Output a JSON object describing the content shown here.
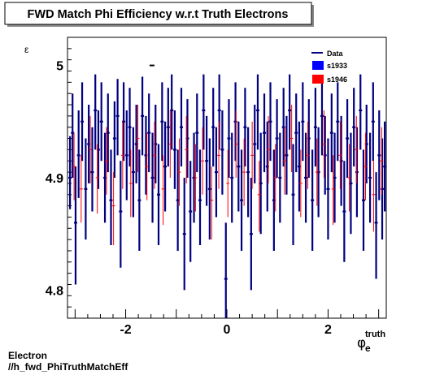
{
  "chart_data": {
    "type": "scatter",
    "title": "FWD Match Phi Efficiency w.r.t Truth Electrons",
    "ylabel": "ε",
    "xlabel_main": "φ",
    "xlabel_sub": "e",
    "xlabel_sup": "truth",
    "xlim": [
      -3.15,
      3.15
    ],
    "ylim": [
      4.775,
      5.025
    ],
    "xticks": [
      {
        "value": -2,
        "label": "-2"
      },
      {
        "value": 0,
        "label": "0"
      },
      {
        "value": 2,
        "label": "2"
      }
    ],
    "yticks": [
      {
        "value": 4.8,
        "label": "4.8"
      },
      {
        "value": 4.9,
        "label": "4.9"
      },
      {
        "value": 5.0,
        "label": "5"
      }
    ],
    "grid": false,
    "legend_position": "top-right",
    "legend": [
      {
        "label": "Data",
        "symbol": "line",
        "color": "#000080"
      },
      {
        "label": "s1933",
        "symbol": "box",
        "color": "#0000ff"
      },
      {
        "label": "s1946",
        "symbol": "box",
        "color": "#ff0000"
      }
    ],
    "series": [
      {
        "color": "#000080",
        "line_width": 2.2,
        "points": [
          [
            -3.1,
            4.9,
            4.872,
            4.937
          ],
          [
            -3.05,
            4.94,
            4.9,
            4.975
          ],
          [
            -2.99,
            4.86,
            4.805,
            4.91
          ],
          [
            -2.93,
            4.92,
            4.882,
            4.96
          ],
          [
            -2.86,
            4.95,
            4.915,
            4.985
          ],
          [
            -2.79,
            4.89,
            4.845,
            4.935
          ],
          [
            -2.73,
            4.93,
            4.895,
            4.965
          ],
          [
            -2.66,
            4.905,
            4.87,
            4.945
          ],
          [
            -2.6,
            4.96,
            4.925,
            4.992
          ],
          [
            -2.54,
            4.925,
            4.89,
            4.96
          ],
          [
            -2.48,
            4.95,
            4.915,
            4.985
          ],
          [
            -2.41,
            4.9,
            4.86,
            4.94
          ],
          [
            -2.35,
            4.94,
            4.905,
            4.975
          ],
          [
            -2.29,
            4.88,
            4.84,
            4.925
          ],
          [
            -2.22,
            4.935,
            4.9,
            4.968
          ],
          [
            -2.16,
            4.955,
            4.92,
            4.988
          ],
          [
            -2.1,
            4.87,
            4.82,
            4.915
          ],
          [
            -2.04,
            4.95,
            4.915,
            4.985
          ],
          [
            -1.98,
            4.92,
            4.88,
            4.96
          ],
          [
            -1.92,
            4.945,
            4.91,
            4.98
          ],
          [
            -1.85,
            4.905,
            4.865,
            4.945
          ],
          [
            -1.79,
            4.93,
            4.895,
            4.965
          ],
          [
            -1.73,
            4.88,
            4.835,
            4.925
          ],
          [
            -1.67,
            4.955,
            4.92,
            4.99
          ],
          [
            -1.6,
            4.92,
            4.885,
            4.955
          ],
          [
            -1.54,
            4.94,
            4.905,
            4.975
          ],
          [
            -1.47,
            4.9,
            4.86,
            4.94
          ],
          [
            -1.41,
            4.93,
            4.895,
            4.965
          ],
          [
            -1.35,
            4.885,
            4.84,
            4.93
          ],
          [
            -1.28,
            4.95,
            4.915,
            4.985
          ],
          [
            -1.22,
            4.91,
            4.87,
            4.95
          ],
          [
            -1.16,
            4.945,
            4.91,
            4.98
          ],
          [
            -1.09,
            4.96,
            4.925,
            4.992
          ],
          [
            -1.03,
            4.925,
            4.89,
            4.96
          ],
          [
            -0.97,
            4.88,
            4.835,
            4.925
          ],
          [
            -0.9,
            4.945,
            4.91,
            4.98
          ],
          [
            -0.84,
            4.85,
            4.8,
            4.9
          ],
          [
            -0.78,
            4.935,
            4.9,
            4.97
          ],
          [
            -0.72,
            4.87,
            4.825,
            4.915
          ],
          [
            -0.65,
            4.9,
            4.86,
            4.94
          ],
          [
            -0.59,
            4.94,
            4.905,
            4.975
          ],
          [
            -0.53,
            4.88,
            4.84,
            4.925
          ],
          [
            -0.46,
            4.96,
            4.925,
            4.992
          ],
          [
            -0.4,
            4.915,
            4.875,
            4.955
          ],
          [
            -0.34,
            4.89,
            4.845,
            4.935
          ],
          [
            -0.27,
            4.945,
            4.91,
            4.98
          ],
          [
            -0.21,
            4.905,
            4.865,
            4.945
          ],
          [
            -0.15,
            4.96,
            4.925,
            4.992
          ],
          [
            -0.09,
            4.925,
            4.885,
            4.96
          ],
          [
            -0.02,
            4.81,
            4.76,
            4.86
          ],
          [
            0.04,
            4.935,
            4.9,
            4.97
          ],
          [
            0.1,
            4.9,
            4.86,
            4.94
          ],
          [
            0.17,
            4.95,
            4.915,
            4.985
          ],
          [
            0.23,
            4.91,
            4.87,
            4.95
          ],
          [
            0.29,
            4.88,
            4.835,
            4.925
          ],
          [
            0.36,
            4.945,
            4.91,
            4.98
          ],
          [
            0.42,
            4.905,
            4.865,
            4.945
          ],
          [
            0.48,
            4.85,
            4.8,
            4.9
          ],
          [
            0.55,
            4.93,
            4.895,
            4.965
          ],
          [
            0.61,
            4.96,
            4.925,
            4.992
          ],
          [
            0.67,
            4.895,
            4.85,
            4.94
          ],
          [
            0.74,
            4.94,
            4.905,
            4.975
          ],
          [
            0.8,
            4.91,
            4.87,
            4.95
          ],
          [
            0.86,
            4.95,
            4.915,
            4.985
          ],
          [
            0.93,
            4.88,
            4.835,
            4.925
          ],
          [
            0.99,
            4.935,
            4.9,
            4.97
          ],
          [
            1.05,
            4.9,
            4.86,
            4.94
          ],
          [
            1.12,
            4.945,
            4.91,
            4.98
          ],
          [
            1.18,
            4.92,
            4.885,
            4.955
          ],
          [
            1.24,
            4.96,
            4.925,
            4.992
          ],
          [
            1.31,
            4.885,
            4.84,
            4.93
          ],
          [
            1.37,
            4.94,
            4.905,
            4.975
          ],
          [
            1.43,
            4.91,
            4.87,
            4.95
          ],
          [
            1.5,
            4.95,
            4.915,
            4.985
          ],
          [
            1.56,
            4.9,
            4.86,
            4.94
          ],
          [
            1.62,
            4.935,
            4.9,
            4.97
          ],
          [
            1.69,
            4.88,
            4.835,
            4.925
          ],
          [
            1.75,
            4.945,
            4.91,
            4.98
          ],
          [
            1.81,
            4.905,
            4.865,
            4.945
          ],
          [
            1.88,
            4.955,
            4.92,
            4.99
          ],
          [
            1.94,
            4.92,
            4.885,
            4.955
          ],
          [
            2.0,
            4.89,
            4.845,
            4.935
          ],
          [
            2.07,
            4.94,
            4.905,
            4.975
          ],
          [
            2.13,
            4.9,
            4.86,
            4.94
          ],
          [
            2.19,
            4.95,
            4.915,
            4.985
          ],
          [
            2.26,
            4.915,
            4.875,
            4.955
          ],
          [
            2.32,
            4.87,
            4.825,
            4.915
          ],
          [
            2.38,
            4.935,
            4.9,
            4.97
          ],
          [
            2.45,
            4.895,
            4.85,
            4.94
          ],
          [
            2.51,
            4.945,
            4.91,
            4.98
          ],
          [
            2.57,
            4.905,
            4.865,
            4.945
          ],
          [
            2.64,
            4.96,
            4.925,
            4.992
          ],
          [
            2.7,
            4.88,
            4.835,
            4.925
          ],
          [
            2.76,
            4.93,
            4.895,
            4.965
          ],
          [
            2.83,
            4.9,
            4.86,
            4.94
          ],
          [
            2.89,
            4.95,
            4.915,
            4.985
          ],
          [
            2.95,
            4.86,
            4.81,
            4.905
          ],
          [
            3.01,
            4.92,
            4.88,
            4.96
          ],
          [
            3.07,
            4.89,
            4.845,
            4.935
          ],
          [
            3.12,
            4.91,
            4.87,
            4.95
          ]
        ]
      },
      {
        "color": "#ff0000",
        "line_width": 1,
        "points": [
          [
            -3.02,
            4.91,
            4.88,
            4.94
          ],
          [
            -2.88,
            4.89,
            4.86,
            4.92
          ],
          [
            -2.7,
            4.925,
            4.895,
            4.955
          ],
          [
            -2.56,
            4.9,
            4.868,
            4.93
          ],
          [
            -2.38,
            4.915,
            4.885,
            4.945
          ],
          [
            -2.24,
            4.875,
            4.84,
            4.905
          ],
          [
            -2.06,
            4.92,
            4.89,
            4.95
          ],
          [
            -1.9,
            4.895,
            4.865,
            4.925
          ],
          [
            -1.76,
            4.935,
            4.905,
            4.965
          ],
          [
            -1.58,
            4.91,
            4.88,
            4.94
          ],
          [
            -1.43,
            4.92,
            4.89,
            4.95
          ],
          [
            -1.26,
            4.89,
            4.858,
            4.92
          ],
          [
            -1.12,
            4.93,
            4.9,
            4.96
          ],
          [
            -0.94,
            4.905,
            4.875,
            4.935
          ],
          [
            -0.8,
            4.925,
            4.895,
            4.955
          ],
          [
            -0.62,
            4.9,
            4.87,
            4.93
          ],
          [
            -0.48,
            4.915,
            4.885,
            4.945
          ],
          [
            -0.3,
            4.88,
            4.845,
            4.91
          ],
          [
            -0.16,
            4.92,
            4.89,
            4.95
          ],
          [
            0.02,
            4.895,
            4.865,
            4.925
          ],
          [
            0.18,
            4.93,
            4.9,
            4.96
          ],
          [
            0.34,
            4.905,
            4.875,
            4.935
          ],
          [
            0.5,
            4.92,
            4.89,
            4.95
          ],
          [
            0.64,
            4.885,
            4.852,
            4.915
          ],
          [
            0.82,
            4.925,
            4.895,
            4.955
          ],
          [
            0.96,
            4.9,
            4.87,
            4.93
          ],
          [
            1.14,
            4.915,
            4.885,
            4.945
          ],
          [
            1.28,
            4.935,
            4.905,
            4.965
          ],
          [
            1.46,
            4.895,
            4.865,
            4.925
          ],
          [
            1.6,
            4.92,
            4.89,
            4.95
          ],
          [
            1.78,
            4.905,
            4.875,
            4.935
          ],
          [
            1.92,
            4.93,
            4.9,
            4.96
          ],
          [
            2.1,
            4.89,
            4.858,
            4.92
          ],
          [
            2.24,
            4.92,
            4.89,
            4.95
          ],
          [
            2.42,
            4.9,
            4.87,
            4.93
          ],
          [
            2.56,
            4.925,
            4.895,
            4.955
          ],
          [
            2.74,
            4.91,
            4.88,
            4.94
          ],
          [
            2.9,
            4.885,
            4.852,
            4.915
          ],
          [
            3.06,
            4.915,
            4.885,
            4.945
          ]
        ]
      }
    ],
    "stray_marker": {
      "x": -1.48,
      "y": 5.0
    },
    "footer_lines": [
      "Electron",
      "//h_fwd_PhiTruthMatchEff"
    ]
  }
}
